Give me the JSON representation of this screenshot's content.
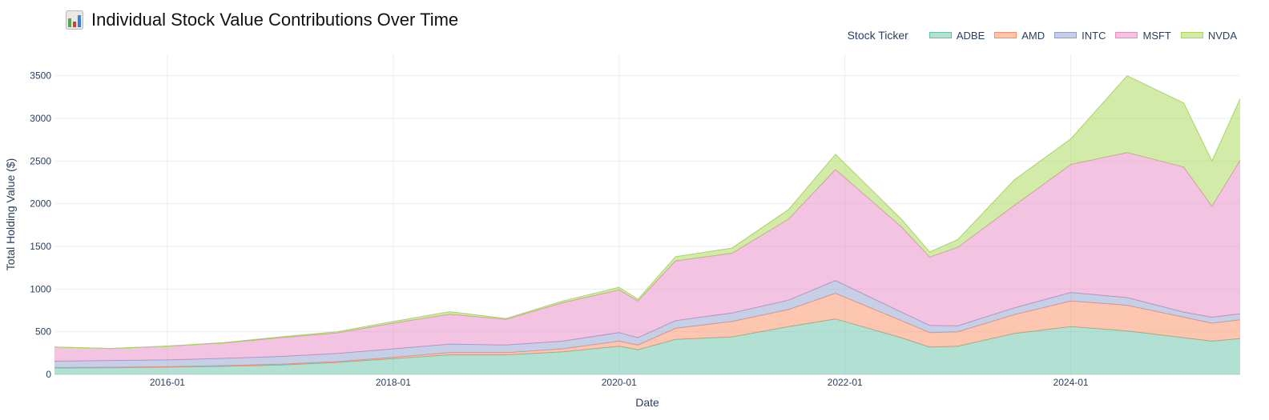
{
  "chart_data": {
    "type": "area",
    "stacked": true,
    "title": "Individual Stock Value Contributions Over Time",
    "title_icon": "bar-chart-emoji-icon",
    "xlabel": "Date",
    "ylabel": "Total Holding Value ($)",
    "legend_title": "Stock Ticker",
    "legend_position": "top-right",
    "grid": true,
    "x_ticks": [
      "2016-01",
      "2018-01",
      "2020-01",
      "2022-01",
      "2024-01"
    ],
    "y_ticks": [
      0,
      500,
      1000,
      1500,
      2000,
      2500,
      3000,
      3500
    ],
    "ylim": [
      0,
      3750
    ],
    "xlim": [
      "2015-01",
      "2025-07"
    ],
    "x": [
      "2015-01",
      "2015-07",
      "2016-01",
      "2016-07",
      "2017-01",
      "2017-07",
      "2018-01",
      "2018-07",
      "2019-01",
      "2019-07",
      "2020-01",
      "2020-03",
      "2020-07",
      "2021-01",
      "2021-07",
      "2021-12",
      "2022-07",
      "2022-10",
      "2023-01",
      "2023-07",
      "2024-01",
      "2024-07",
      "2025-01",
      "2025-04",
      "2025-07"
    ],
    "series": [
      {
        "name": "ADBE",
        "color": "#66c2a5",
        "values": [
          75,
          78,
          85,
          95,
          110,
          140,
          185,
          230,
          230,
          265,
          330,
          290,
          410,
          440,
          560,
          650,
          430,
          320,
          330,
          480,
          560,
          510,
          430,
          390,
          420
        ]
      },
      {
        "name": "AMD",
        "color": "#fc8d62",
        "values": [
          5,
          5,
          5,
          8,
          10,
          10,
          15,
          25,
          25,
          35,
          60,
          55,
          130,
          180,
          200,
          300,
          200,
          170,
          170,
          220,
          300,
          300,
          240,
          210,
          220
        ]
      },
      {
        "name": "INTC",
        "color": "#8da0cb",
        "values": [
          75,
          80,
          80,
          85,
          90,
          95,
          100,
          100,
          90,
          90,
          100,
          85,
          90,
          100,
          110,
          150,
          100,
          85,
          70,
          80,
          100,
          90,
          60,
          70,
          70
        ]
      },
      {
        "name": "MSFT",
        "color": "#e78ac3",
        "values": [
          165,
          140,
          160,
          180,
          220,
          240,
          300,
          350,
          300,
          450,
          500,
          430,
          700,
          700,
          950,
          1300,
          1000,
          800,
          920,
          1200,
          1500,
          1700,
          1700,
          1300,
          1800
        ]
      },
      {
        "name": "NVDA",
        "color": "#a6d854",
        "values": [
          2,
          2,
          3,
          5,
          10,
          15,
          20,
          30,
          10,
          20,
          30,
          20,
          50,
          60,
          110,
          180,
          90,
          60,
          90,
          300,
          300,
          900,
          750,
          530,
          720
        ]
      }
    ]
  }
}
